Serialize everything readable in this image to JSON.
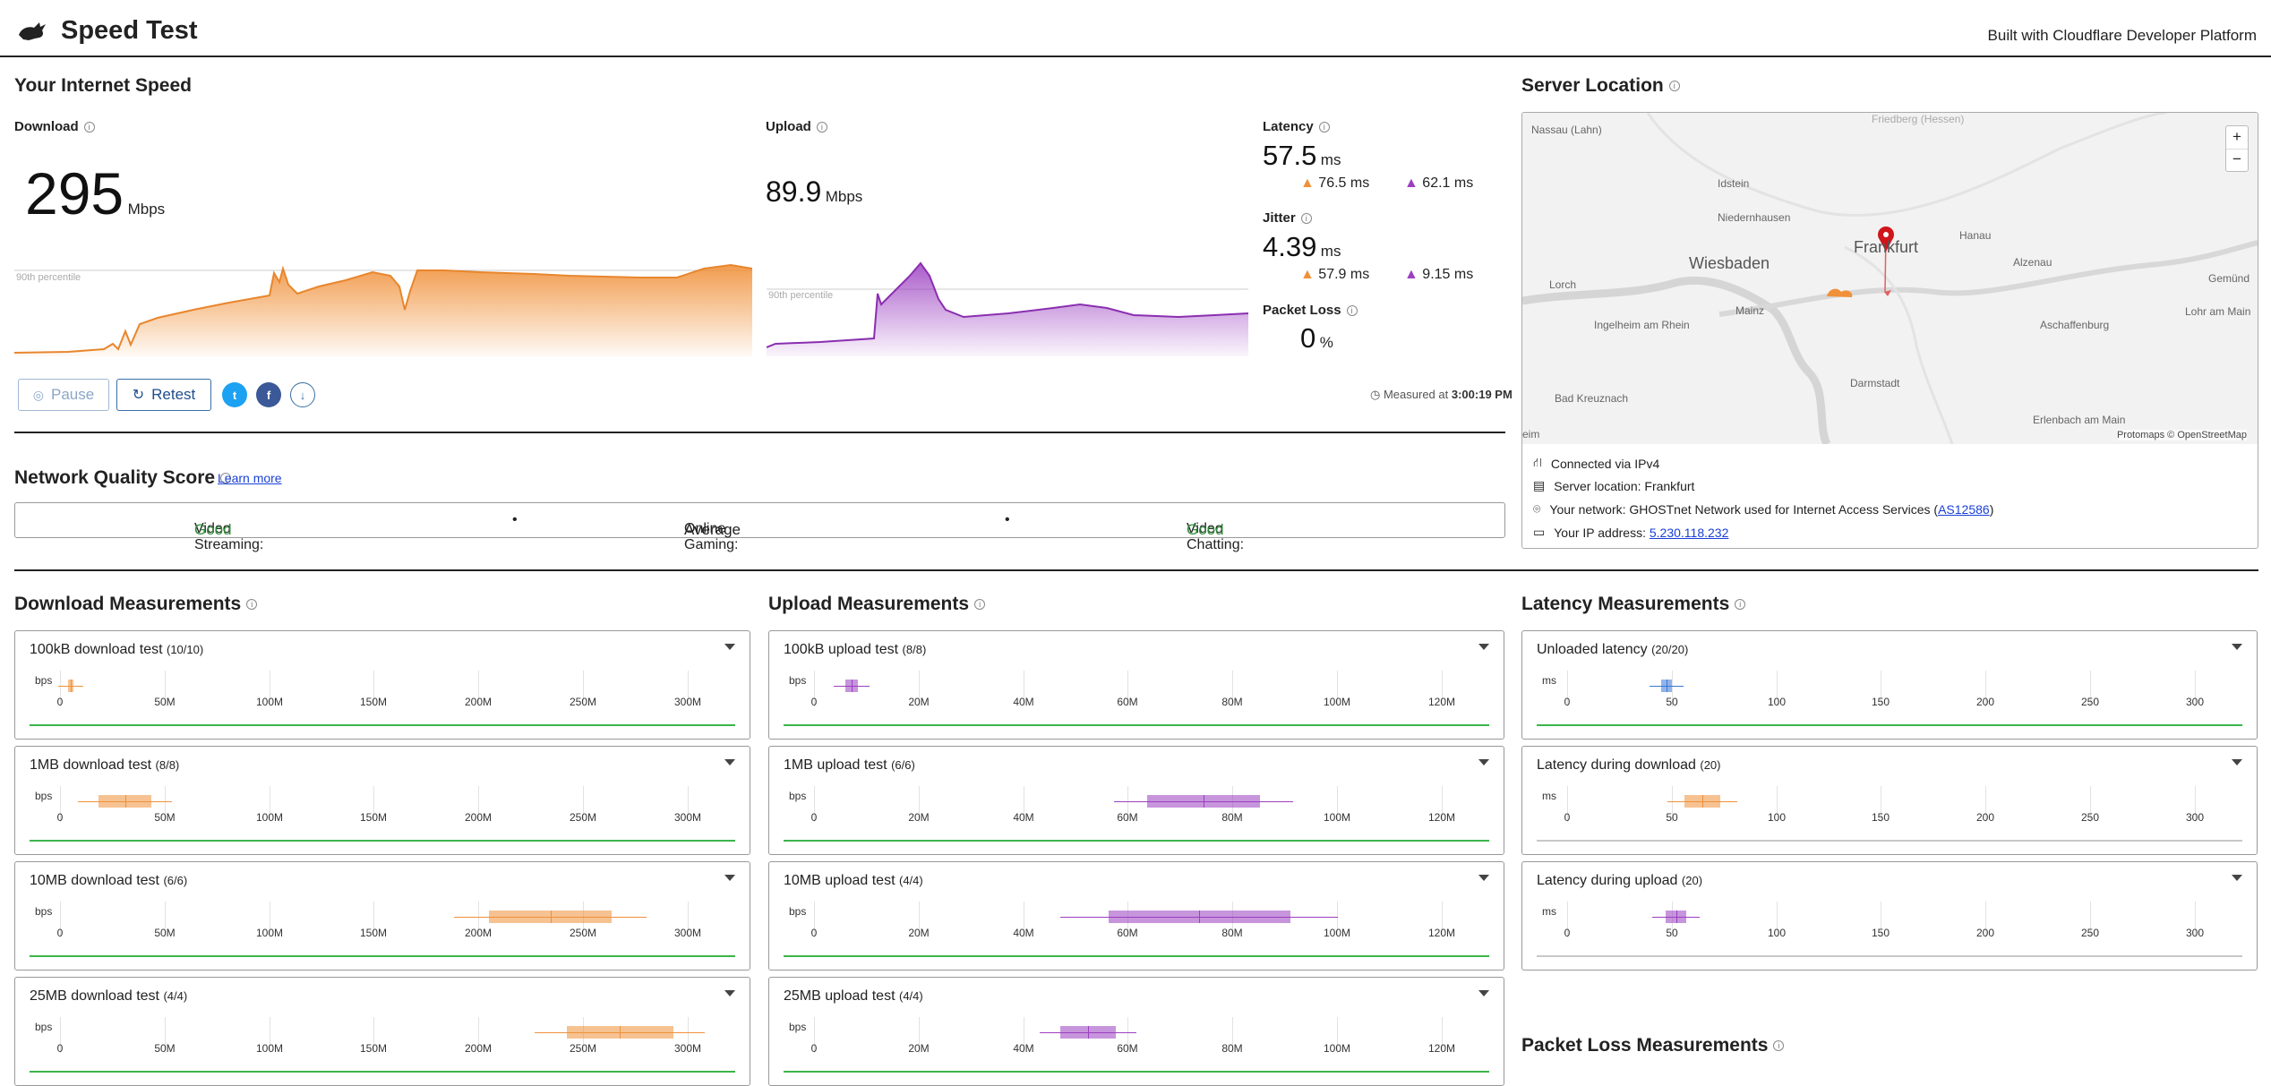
{
  "header": {
    "title": "Speed Test",
    "built": "Built with Cloudflare Developer Platform"
  },
  "speed": {
    "section_title": "Your Internet Speed",
    "download": {
      "label": "Download",
      "value": "295",
      "unit": "Mbps",
      "percentile": "90th percentile"
    },
    "upload": {
      "label": "Upload",
      "value": "89.9",
      "unit": "Mbps",
      "percentile": "90th percentile"
    },
    "latency": {
      "label": "Latency",
      "value": "57.5",
      "unit": "ms",
      "down": "76.5",
      "down_unit": "ms",
      "up": "62.1",
      "up_unit": "ms"
    },
    "jitter": {
      "label": "Jitter",
      "value": "4.39",
      "unit": "ms",
      "down": "57.9",
      "down_unit": "ms",
      "up": "9.15",
      "up_unit": "ms"
    },
    "packet_loss": {
      "label": "Packet Loss",
      "value": "0",
      "unit": "%"
    },
    "pause_label": "Pause",
    "retest_label": "Retest",
    "measured_prefix": "Measured at",
    "measured_time": "3:00:19 PM"
  },
  "nqs": {
    "title": "Network Quality Score",
    "learn_more": "Learn more",
    "items": [
      {
        "label": "Video Streaming:",
        "value": "Good"
      },
      {
        "label": "Online Gaming:",
        "value": "Average"
      },
      {
        "label": "Video Chatting:",
        "value": "Good"
      }
    ],
    "bullet": "•"
  },
  "server": {
    "title": "Server Location",
    "city": "Frankfurt",
    "attribution": "Protomaps © OpenStreetMap",
    "zoom_in": "+",
    "zoom_out": "−",
    "places": [
      "Nassau (Lahn)",
      "Idstein",
      "Niedernhausen",
      "Wiesbaden",
      "Frankfurt",
      "Hanau",
      "Alzenau",
      "Gemünd",
      "Lorch",
      "Mainz",
      "Lohr am Main",
      "Ingelheim am Rhein",
      "Aschaffenburg",
      "Bad Kreuznach",
      "Darmstadt",
      "Erlenbach am Main",
      "eim",
      "Friedberg (Hessen)"
    ],
    "connected": "Connected via IPv4",
    "location": "Server location: Frankfurt",
    "network_prefix": "Your network: GHOSTnet Network used for Internet Access Services (",
    "asn": "AS12586",
    "network_suffix": ")",
    "ip_prefix": "Your IP address: ",
    "ip": "5.230.118.232"
  },
  "download_meas": {
    "title": "Download Measurements",
    "unit": "bps",
    "ticks": [
      "0",
      "50M",
      "100M",
      "150M",
      "200M",
      "250M",
      "300M"
    ],
    "tests": [
      {
        "name": "100kB download test",
        "count": "(10/10)"
      },
      {
        "name": "1MB download test",
        "count": "(8/8)"
      },
      {
        "name": "10MB download test",
        "count": "(6/6)"
      },
      {
        "name": "25MB download test",
        "count": "(4/4)"
      }
    ]
  },
  "upload_meas": {
    "title": "Upload Measurements",
    "unit": "bps",
    "ticks": [
      "0",
      "20M",
      "40M",
      "60M",
      "80M",
      "100M",
      "120M"
    ],
    "tests": [
      {
        "name": "100kB upload test",
        "count": "(8/8)"
      },
      {
        "name": "1MB upload test",
        "count": "(6/6)"
      },
      {
        "name": "10MB upload test",
        "count": "(4/4)"
      },
      {
        "name": "25MB upload test",
        "count": "(4/4)"
      }
    ]
  },
  "latency_meas": {
    "title": "Latency Measurements",
    "unit": "ms",
    "ticks": [
      "0",
      "50",
      "100",
      "150",
      "200",
      "250",
      "300"
    ],
    "tests": [
      {
        "name": "Unloaded latency",
        "count": "(20/20)"
      },
      {
        "name": "Latency during download",
        "count": "(20)"
      },
      {
        "name": "Latency during upload",
        "count": "(20)"
      }
    ]
  },
  "packet_loss_meas": {
    "title": "Packet Loss Measurements"
  },
  "colors": {
    "download": "#f0913a",
    "upload": "#9b3fc1",
    "latency": "#3a77d8",
    "good": "#2f8a3a",
    "twitter": "#1da1f2",
    "facebook": "#3b5998"
  }
}
